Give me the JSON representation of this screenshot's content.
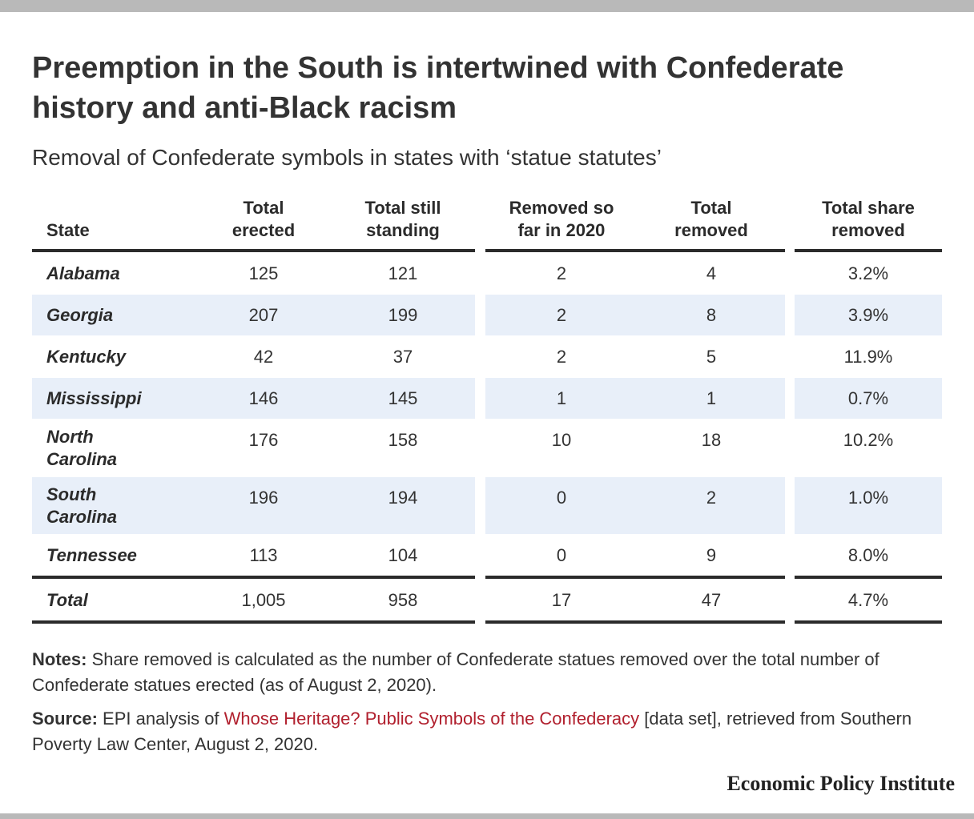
{
  "title": "Preemption in the South is intertwined with Confederate history and anti-Black racism",
  "subtitle": "Removal of Confederate symbols in states with ‘statue statutes’",
  "table": {
    "headers": {
      "state": "State",
      "erected_1": "Total",
      "erected_2": "erected",
      "standing_1": "Total still",
      "standing_2": "standing",
      "removed2020_1": "Removed so",
      "removed2020_2": "far in 2020",
      "removed_1": "Total",
      "removed_2": "removed",
      "share_1": "Total share",
      "share_2": "removed"
    },
    "rows": [
      {
        "state_1": "Alabama",
        "state_2": "",
        "erected": "125",
        "standing": "121",
        "removed2020": "2",
        "removed": "4",
        "share": "3.2%"
      },
      {
        "state_1": "Georgia",
        "state_2": "",
        "erected": "207",
        "standing": "199",
        "removed2020": "2",
        "removed": "8",
        "share": "3.9%"
      },
      {
        "state_1": "Kentucky",
        "state_2": "",
        "erected": "42",
        "standing": "37",
        "removed2020": "2",
        "removed": "5",
        "share": "11.9%"
      },
      {
        "state_1": "Mississippi",
        "state_2": "",
        "erected": "146",
        "standing": "145",
        "removed2020": "1",
        "removed": "1",
        "share": "0.7%"
      },
      {
        "state_1": "North",
        "state_2": "Carolina",
        "erected": "176",
        "standing": "158",
        "removed2020": "10",
        "removed": "18",
        "share": "10.2%"
      },
      {
        "state_1": "South",
        "state_2": "Carolina",
        "erected": "196",
        "standing": "194",
        "removed2020": "0",
        "removed": "2",
        "share": "1.0%"
      },
      {
        "state_1": "Tennessee",
        "state_2": "",
        "erected": "113",
        "standing": "104",
        "removed2020": "0",
        "removed": "9",
        "share": "8.0%"
      }
    ],
    "total": {
      "state": "Total",
      "erected": "1,005",
      "standing": "958",
      "removed2020": "17",
      "removed": "47",
      "share": "4.7%"
    }
  },
  "notes": {
    "label": "Notes:",
    "text": " Share removed is calculated as the number of Confederate statues removed over the total number of Confederate statues erected (as of August 2, 2020)."
  },
  "source": {
    "label": "Source:",
    "text_before": " EPI analysis of ",
    "link_text": "Whose Heritage? Public Symbols of the Confederacy",
    "text_after": " [data set], retrieved from Southern Poverty Law Center, August 2, 2020."
  },
  "brand": "Economic Policy Institute",
  "colors": {
    "band": "#e8eff9",
    "rule": "#2b2b2b",
    "link": "#b1202e",
    "frame": "#b9b9b9"
  }
}
